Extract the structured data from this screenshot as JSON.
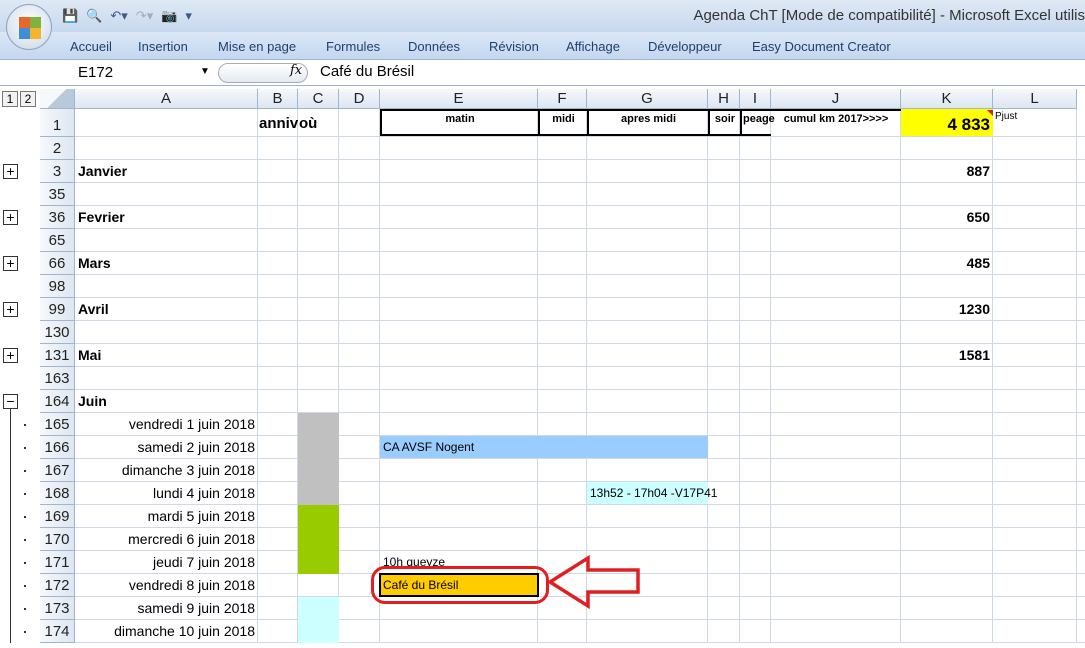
{
  "window": {
    "title": "Agenda ChT  [Mode de compatibilité] - Microsoft Excel utilis"
  },
  "ribbon": {
    "tabs": [
      "Accueil",
      "Insertion",
      "Mise en page",
      "Formules",
      "Données",
      "Révision",
      "Affichage",
      "Développeur",
      "Easy Document Creator"
    ]
  },
  "formula_bar": {
    "name_box": "E172",
    "fx": "fx",
    "formula": "Café du Brésil"
  },
  "outline_levels": [
    "1",
    "2"
  ],
  "columns": [
    "A",
    "B",
    "C",
    "D",
    "E",
    "F",
    "G",
    "H",
    "I",
    "J",
    "K",
    "L"
  ],
  "header_row": {
    "B": "anniv",
    "C": "où",
    "E": "matin",
    "F": "midi",
    "G": "apres midi",
    "H": "soir",
    "I": "peage",
    "J": "cumul km 2017>>>>",
    "K": "4 833",
    "L": "Pjust"
  },
  "rows": [
    {
      "n": "2"
    },
    {
      "n": "3",
      "A": "Janvier",
      "K": "887",
      "group": "collapsed"
    },
    {
      "n": "35"
    },
    {
      "n": "36",
      "A": "Fevrier",
      "K": "650",
      "group": "collapsed"
    },
    {
      "n": "65"
    },
    {
      "n": "66",
      "A": "Mars",
      "K": "485",
      "group": "collapsed"
    },
    {
      "n": "98"
    },
    {
      "n": "99",
      "A": "Avril",
      "K": "1230",
      "group": "collapsed"
    },
    {
      "n": "130"
    },
    {
      "n": "131",
      "A": "Mai",
      "K": "1581",
      "group": "collapsed"
    },
    {
      "n": "163"
    },
    {
      "n": "164",
      "A": "Juin",
      "group": "expanded"
    },
    {
      "n": "165",
      "date": "vendredi 1 juin 2018",
      "C_fill": "#c0c0c0"
    },
    {
      "n": "166",
      "date": "samedi 2 juin 2018",
      "C_fill": "#c0c0c0",
      "E": "CA AVSF Nogent",
      "E_fill": "#99ccff"
    },
    {
      "n": "167",
      "date": "dimanche 3 juin 2018",
      "C_fill": "#c0c0c0"
    },
    {
      "n": "168",
      "date": "lundi 4 juin 2018",
      "C_fill": "#c0c0c0",
      "G": "13h52 - 17h04 -V17P41",
      "G_fill": "#ccffff"
    },
    {
      "n": "169",
      "date": "mardi 5 juin 2018",
      "C_fill": "#99cc00"
    },
    {
      "n": "170",
      "date": "mercredi 6 juin 2018",
      "C_fill": "#99cc00"
    },
    {
      "n": "171",
      "date": "jeudi 7 juin 2018",
      "C_fill": "#99cc00",
      "E": "10h queyze"
    },
    {
      "n": "172",
      "date": "vendredi 8 juin 2018",
      "E": "Café du Brésil",
      "E_fill": "#ffcc00"
    },
    {
      "n": "173",
      "date": "samedi 9 juin 2018",
      "C_fill": "#ccffff"
    },
    {
      "n": "174",
      "date": "dimanche 10 juin 2018",
      "C_fill": "#ccffff"
    }
  ],
  "colors": {
    "highlight_K1": "#ffff00",
    "annotation": "#e02020"
  }
}
